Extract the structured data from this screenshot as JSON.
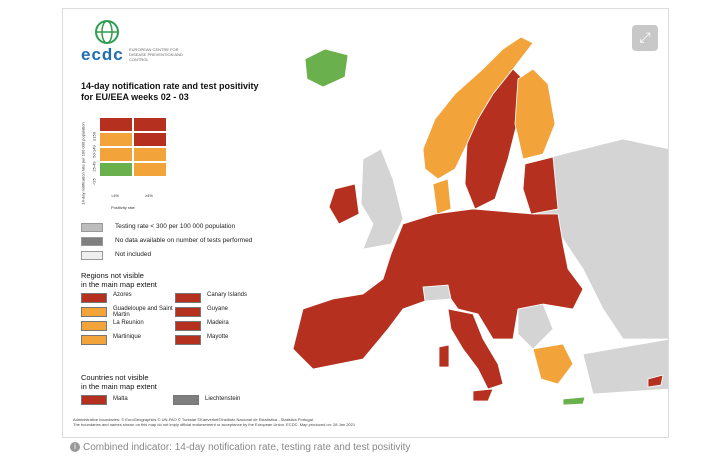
{
  "logo": {
    "name": "ecdc",
    "subtitle": "EUROPEAN CENTRE FOR DISEASE PREVENTION AND CONTROL"
  },
  "title": {
    "line1": "14-day notification rate and test positivity",
    "line2": "for EU/EEA weeks 02 - 03"
  },
  "matrix": {
    "y_axis_title": "14-day notification rate per 100 000 population",
    "y_ticks": [
      "<25",
      "25-49",
      "50-149",
      "≥150"
    ],
    "x_ticks": [
      "<4%",
      "≥4%"
    ],
    "x_axis_title": "Positivity rate",
    "cells_bottom_to_top": [
      [
        "#6ab04c",
        "#f2a33a"
      ],
      [
        "#f2a33a",
        "#f2a33a"
      ],
      [
        "#f2a33a",
        "#b5301f"
      ],
      [
        "#b5301f",
        "#b5301f"
      ]
    ]
  },
  "legend": [
    {
      "label": "Testing rate < 300 per 100 000 population",
      "color": "#bdbdbd"
    },
    {
      "label": "No data available on number of tests performed",
      "color": "#7f7f7f"
    },
    {
      "label": "Not included",
      "color": "#efefef"
    }
  ],
  "regions_title": {
    "line1": "Regions not visible",
    "line2": "in the main map extent"
  },
  "regions": [
    {
      "label": "Azores",
      "color": "#b5301f"
    },
    {
      "label": "Canary Islands",
      "color": "#b5301f"
    },
    {
      "label": "Guadeloupe and Saint Martin",
      "color": "#f2a33a"
    },
    {
      "label": "Guyane",
      "color": "#b5301f"
    },
    {
      "label": "La Reunion",
      "color": "#f2a33a"
    },
    {
      "label": "Madeira",
      "color": "#b5301f"
    },
    {
      "label": "Martinique",
      "color": "#f2a33a"
    },
    {
      "label": "Mayotte",
      "color": "#b5301f"
    }
  ],
  "countries_title": {
    "line1": "Countries not visible",
    "line2": "in the main map extent"
  },
  "countries": [
    {
      "label": "Malta",
      "color": "#b5301f"
    },
    {
      "label": "Liechtenstein",
      "color": "#7f7f7f"
    }
  ],
  "footer": {
    "line1": "Administrative boundaries: © EuroGeographics © UN-FAO © Turkstat ©Kartverket©Instituto Nacional de Estatística - Statistics Portugal.",
    "line2": "The boundaries and names shown on this map do not imply official endorsement or acceptance by the European Union. ECDC. Map produced on: 28 Jan 2021"
  },
  "expand_icon": "expand-arrows-icon",
  "caption": "Combined indicator: 14-day notification rate, testing rate and test positivity",
  "colors": {
    "red": "#b5301f",
    "orange": "#f2a33a",
    "green": "#6ab04c",
    "grey_country": "#d4d4d4",
    "sea": "#ffffff"
  }
}
